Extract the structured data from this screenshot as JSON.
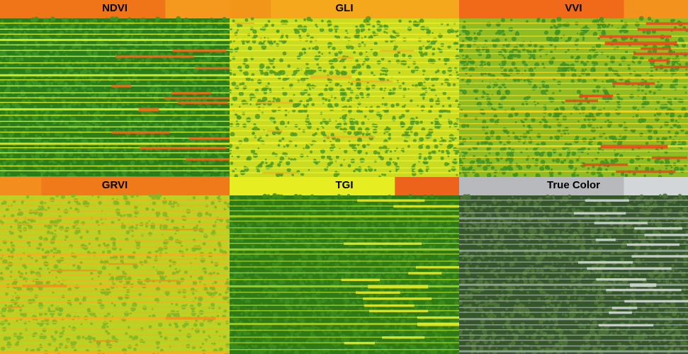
{
  "panels": [
    {
      "label": "NDVI",
      "colors": {
        "header": "#f07418",
        "header_alt": "#f5a020",
        "base": "#2a7d1b",
        "canopy": "#3a9424",
        "rowline": "#e8ef22",
        "gap": "#f06418"
      },
      "canopy_density": 0.85,
      "stress_side": "right"
    },
    {
      "label": "GLI",
      "colors": {
        "header": "#f6a81c",
        "header_alt": "#f08a18",
        "base": "#c9dc22",
        "canopy": "#4f9a22",
        "rowline": "#eff02a",
        "gap": "#f0a820"
      },
      "canopy_density": 0.45,
      "stress_side": "none"
    },
    {
      "label": "VVI",
      "colors": {
        "header": "#f06a1a",
        "header_alt": "#f3991f",
        "base": "#8fbb23",
        "canopy": "#3f9223",
        "rowline": "#f2d723",
        "gap": "#ef3e1a"
      },
      "canopy_density": 0.5,
      "stress_side": "right"
    },
    {
      "label": "GRVI",
      "colors": {
        "header": "#f07a19",
        "header_alt": "#f59a1f",
        "base": "#b9d224",
        "canopy": "#7fb623",
        "rowline": "#f4b01f",
        "gap": "#f08a1a"
      },
      "canopy_density": 0.35,
      "stress_side": "none"
    },
    {
      "label": "TGI",
      "colors": {
        "header": "#e6ee22",
        "header_alt": "#ef4a1a",
        "base": "#2e7a17",
        "canopy": "#3b8c1e",
        "rowline": "#a7d224",
        "gap": "#e8ec24"
      },
      "canopy_density": 0.9,
      "stress_side": "right"
    },
    {
      "label": "True Color",
      "colors": {
        "header": "#b7b9bc",
        "header_alt": "#d8dbde",
        "base": "#35562b",
        "canopy": "#4e7436",
        "rowline": "#9aa69a",
        "gap": "#d4dbd7"
      },
      "canopy_density": 0.75,
      "stress_side": "right"
    }
  ]
}
